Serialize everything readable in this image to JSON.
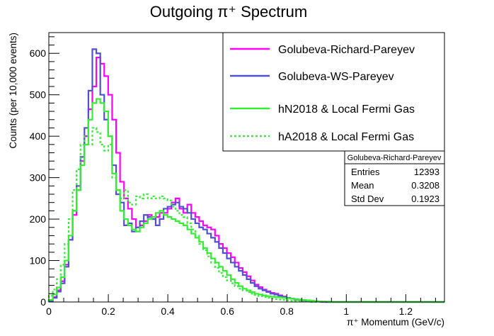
{
  "chart_data": {
    "type": "histogram-step",
    "title": "Outgoing π⁺ Spectrum",
    "xlabel": "π⁺ Momentum (GeV/c)",
    "ylabel": "Counts (per 10,000 events)",
    "xlim": [
      0,
      1.33
    ],
    "ylim": [
      0,
      650
    ],
    "bin_width": 0.0133,
    "xticks": [
      0,
      0.2,
      0.4,
      0.6,
      0.8,
      1,
      1.2
    ],
    "xtick_labels": [
      "0",
      "0.2",
      "0.4",
      "0.6",
      "0.8",
      "1",
      "1.2"
    ],
    "yticks": [
      0,
      100,
      200,
      300,
      400,
      500,
      600
    ],
    "ytick_labels": [
      "0",
      "100",
      "200",
      "300",
      "400",
      "500",
      "600"
    ],
    "series": [
      {
        "name": "Golubeva-Richard-Pareyev",
        "color": "#ff00ff",
        "dash": "solid",
        "values": [
          2,
          12,
          28,
          50,
          90,
          150,
          210,
          270,
          340,
          400,
          465,
          520,
          590,
          575,
          545,
          500,
          440,
          360,
          290,
          250,
          225,
          200,
          180,
          185,
          195,
          210,
          200,
          205,
          215,
          215,
          225,
          240,
          250,
          225,
          215,
          235,
          215,
          205,
          195,
          185,
          180,
          175,
          160,
          140,
          130,
          118,
          108,
          95,
          82,
          72,
          62,
          52,
          42,
          36,
          30,
          26,
          22,
          20,
          16,
          13,
          10,
          8,
          6,
          5,
          4,
          3,
          2,
          1,
          1,
          0,
          0,
          0,
          0,
          0,
          0,
          0,
          0,
          0,
          0,
          0,
          0,
          0,
          0,
          0,
          0,
          0,
          0,
          0,
          0,
          0,
          0,
          0,
          0,
          0,
          0,
          0,
          0,
          0,
          0,
          0
        ]
      },
      {
        "name": "Golubeva-WS-Pareyev",
        "color": "#5050d0",
        "dash": "solid",
        "values": [
          3,
          10,
          25,
          45,
          85,
          150,
          220,
          280,
          350,
          420,
          510,
          610,
          600,
          500,
          440,
          400,
          330,
          260,
          240,
          185,
          190,
          170,
          180,
          195,
          210,
          205,
          200,
          185,
          200,
          225,
          230,
          235,
          240,
          230,
          225,
          215,
          200,
          190,
          180,
          175,
          165,
          155,
          145,
          130,
          118,
          105,
          95,
          85,
          75,
          65,
          55,
          46,
          38,
          32,
          28,
          24,
          20,
          18,
          15,
          12,
          10,
          8,
          6,
          5,
          4,
          3,
          2,
          2,
          1,
          1,
          0,
          0,
          0,
          0,
          0,
          0,
          0,
          0,
          0,
          0,
          0,
          0,
          0,
          0,
          0,
          0,
          0,
          0,
          0,
          0,
          0,
          0,
          0,
          0,
          0,
          0,
          0,
          0,
          0,
          0
        ]
      },
      {
        "name": "hN2018 & Local Fermi Gas",
        "color": "#33ee33",
        "dash": "solid",
        "values": [
          5,
          18,
          35,
          60,
          100,
          160,
          220,
          270,
          330,
          380,
          440,
          480,
          490,
          480,
          460,
          400,
          310,
          270,
          220,
          200,
          185,
          175,
          170,
          180,
          190,
          200,
          205,
          215,
          220,
          210,
          205,
          200,
          195,
          190,
          185,
          175,
          165,
          155,
          145,
          130,
          118,
          105,
          95,
          85,
          75,
          65,
          55,
          46,
          38,
          32,
          28,
          24,
          20,
          18,
          16,
          14,
          13,
          12,
          11,
          10,
          9,
          8,
          7,
          6,
          5,
          4,
          3,
          2,
          1,
          1,
          1,
          0,
          0,
          0,
          0,
          0,
          0,
          0,
          0,
          0,
          0,
          0,
          0,
          0,
          0,
          0,
          0,
          0,
          0,
          0,
          0,
          0,
          0,
          0,
          0,
          0,
          0,
          0,
          0,
          0
        ]
      },
      {
        "name": "hA2018 & Local Fermi Gas",
        "color": "#33ee33",
        "dash": "dotted",
        "values": [
          15,
          30,
          55,
          90,
          140,
          200,
          270,
          320,
          380,
          400,
          380,
          420,
          410,
          380,
          365,
          380,
          300,
          270,
          250,
          270,
          240,
          235,
          255,
          250,
          260,
          250,
          255,
          250,
          255,
          250,
          245,
          230,
          220,
          210,
          205,
          190,
          175,
          160,
          140,
          125,
          110,
          95,
          82,
          70,
          60,
          52,
          45,
          38,
          32,
          28,
          24,
          20,
          17,
          14,
          12,
          10,
          8,
          7,
          6,
          5,
          4,
          3,
          2,
          2,
          1,
          1,
          0,
          0,
          0,
          0,
          0,
          0,
          0,
          0,
          0,
          0,
          0,
          0,
          0,
          0,
          0,
          0,
          0,
          0,
          0,
          0,
          0,
          0,
          0,
          0,
          0,
          0,
          0,
          0,
          0,
          0,
          0,
          0,
          0,
          0
        ]
      }
    ],
    "stats_box": {
      "title": "Golubeva-Richard-Pareyev",
      "rows": [
        {
          "label": "Entries",
          "value": "12393"
        },
        {
          "label": "Mean",
          "value": "0.3208"
        },
        {
          "label": "Std Dev",
          "value": "0.1923"
        }
      ]
    }
  }
}
